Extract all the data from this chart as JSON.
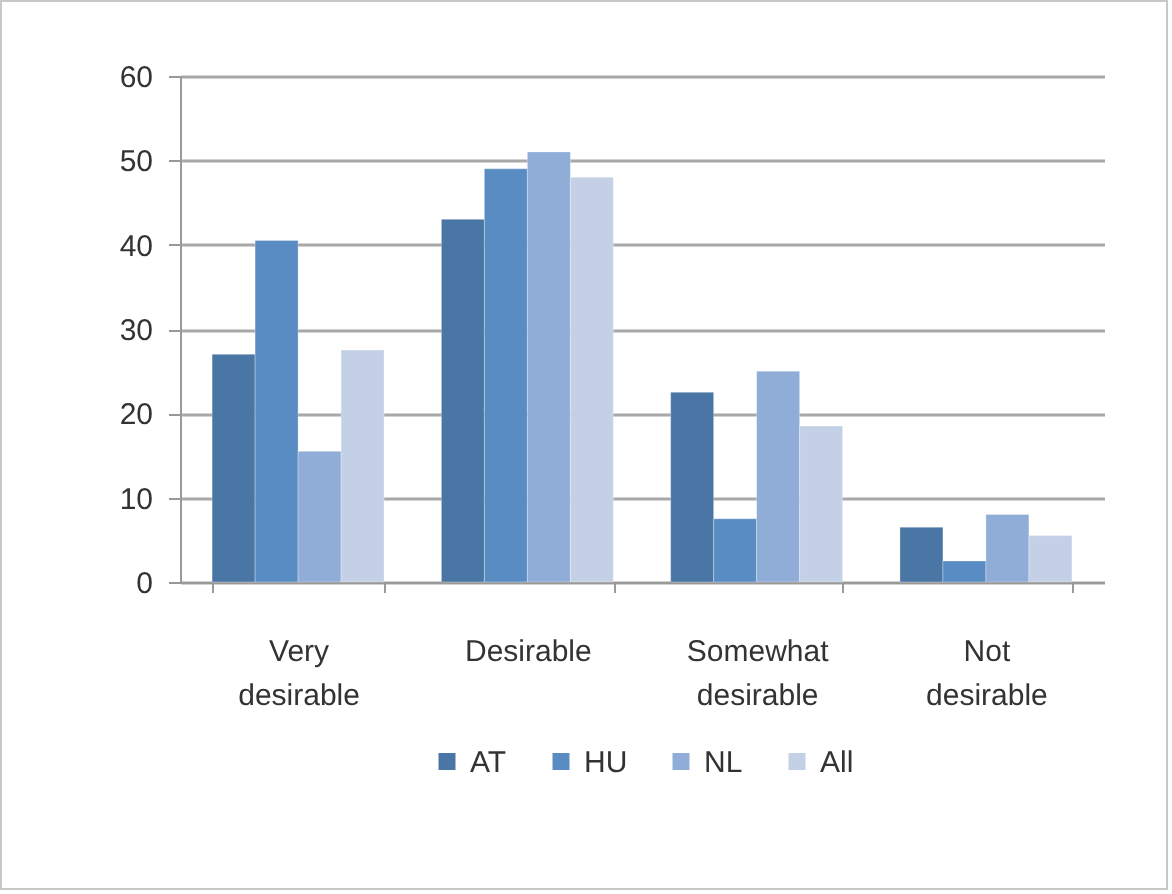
{
  "chart_data": {
    "type": "bar",
    "categories": [
      "Very desirable",
      "Desirable",
      "Somewhat desirable",
      "Not desirable"
    ],
    "series": [
      {
        "name": "AT",
        "color": "#4a76a6",
        "values": [
          27,
          43,
          22.5,
          6.5
        ]
      },
      {
        "name": "HU",
        "color": "#5a8cc4",
        "values": [
          40.5,
          49,
          7.5,
          2.5
        ]
      },
      {
        "name": "NL",
        "color": "#8fadd6",
        "values": [
          15.5,
          51,
          25,
          8
        ]
      },
      {
        "name": "All",
        "color": "#c3d0e6",
        "values": [
          27.5,
          48,
          18.5,
          5.5
        ]
      }
    ],
    "ylim": [
      0,
      60
    ],
    "yticks": [
      0,
      10,
      20,
      30,
      40,
      50,
      60
    ],
    "grid": "y",
    "legend": "bottom"
  }
}
